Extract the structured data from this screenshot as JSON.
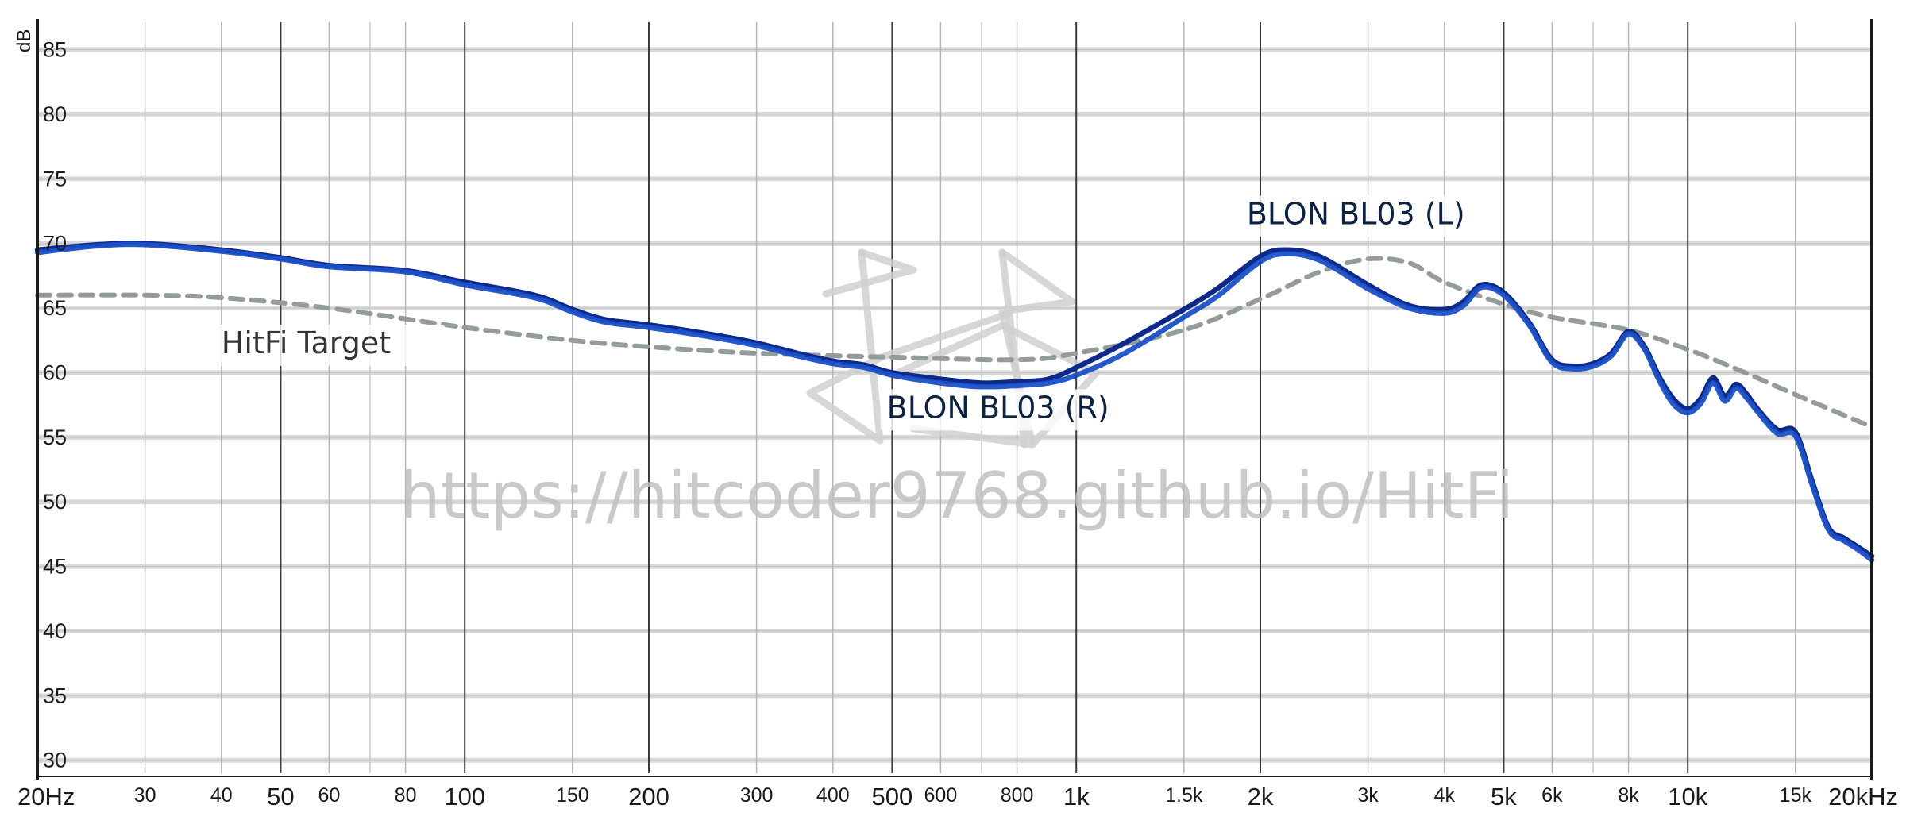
{
  "chart_data": {
    "type": "line",
    "title": "",
    "ylabel": "dB",
    "xlabel": "",
    "x_scale": "log",
    "xlim": [
      20,
      20000
    ],
    "ylim": [
      29,
      87
    ],
    "x_ticks": [
      {
        "value": 20,
        "label": "20Hz",
        "major": true
      },
      {
        "value": 30,
        "label": "30",
        "major": false
      },
      {
        "value": 40,
        "label": "40",
        "major": false
      },
      {
        "value": 50,
        "label": "50",
        "major": true
      },
      {
        "value": 60,
        "label": "60",
        "major": false
      },
      {
        "value": 80,
        "label": "80",
        "major": false
      },
      {
        "value": 100,
        "label": "100",
        "major": true
      },
      {
        "value": 150,
        "label": "150",
        "major": false
      },
      {
        "value": 200,
        "label": "200",
        "major": true
      },
      {
        "value": 300,
        "label": "300",
        "major": false
      },
      {
        "value": 400,
        "label": "400",
        "major": false
      },
      {
        "value": 500,
        "label": "500",
        "major": true
      },
      {
        "value": 600,
        "label": "600",
        "major": false
      },
      {
        "value": 800,
        "label": "800",
        "major": false
      },
      {
        "value": 1000,
        "label": "1k",
        "major": true
      },
      {
        "value": 1500,
        "label": "1.5k",
        "major": false
      },
      {
        "value": 2000,
        "label": "2k",
        "major": true
      },
      {
        "value": 3000,
        "label": "3k",
        "major": false
      },
      {
        "value": 4000,
        "label": "4k",
        "major": false
      },
      {
        "value": 5000,
        "label": "5k",
        "major": true
      },
      {
        "value": 6000,
        "label": "6k",
        "major": false
      },
      {
        "value": 8000,
        "label": "8k",
        "major": false
      },
      {
        "value": 10000,
        "label": "10k",
        "major": true
      },
      {
        "value": 15000,
        "label": "15k",
        "major": false
      },
      {
        "value": 20000,
        "label": "20kHz",
        "major": true
      }
    ],
    "x_gridlines_extra": [
      70,
      700,
      7000
    ],
    "y_ticks": [
      30,
      35,
      40,
      45,
      50,
      55,
      60,
      65,
      70,
      75,
      80,
      85
    ],
    "grid": true,
    "series": [
      {
        "name": "HitFi Target",
        "style": "dashed",
        "color": "#939c9a",
        "x": [
          20,
          30,
          40,
          60,
          100,
          150,
          200,
          300,
          500,
          800,
          1000,
          1500,
          2000,
          2500,
          3000,
          3500,
          4000,
          5000,
          6000,
          8000,
          10000,
          12000,
          15000,
          20000
        ],
        "y": [
          66.0,
          66.0,
          65.8,
          65.0,
          63.5,
          62.5,
          62.0,
          61.5,
          61.2,
          61.0,
          61.5,
          63.3,
          65.7,
          67.8,
          68.8,
          68.5,
          67.0,
          65.3,
          64.3,
          63.3,
          61.8,
          60.3,
          58.3,
          55.8
        ]
      },
      {
        "name": "BLON BL03 (L)",
        "style": "solid",
        "color": "#0d2a8a",
        "x": [
          20,
          25,
          30,
          40,
          50,
          60,
          80,
          100,
          130,
          150,
          170,
          200,
          250,
          300,
          350,
          400,
          450,
          500,
          600,
          700,
          800,
          900,
          1000,
          1200,
          1500,
          1700,
          2000,
          2200,
          2500,
          3000,
          3500,
          4000,
          4300,
          4600,
          5000,
          5500,
          6000,
          6500,
          7000,
          7500,
          8000,
          8500,
          9000,
          9500,
          10000,
          10500,
          11000,
          11500,
          12000,
          12500,
          13000,
          14000,
          15000,
          16000,
          17000,
          18000,
          19000,
          20000
        ],
        "y": [
          69.5,
          69.9,
          70.0,
          69.5,
          68.9,
          68.3,
          67.9,
          67.0,
          66.0,
          64.9,
          64.1,
          63.7,
          63.0,
          62.3,
          61.5,
          60.9,
          60.6,
          60.0,
          59.5,
          59.2,
          59.3,
          59.5,
          60.4,
          62.3,
          64.9,
          66.5,
          69.0,
          69.5,
          69.0,
          66.8,
          65.2,
          64.9,
          65.5,
          66.8,
          66.2,
          63.9,
          61.0,
          60.5,
          60.7,
          61.5,
          63.2,
          62.0,
          59.6,
          57.9,
          57.2,
          58.0,
          59.6,
          58.2,
          59.1,
          58.3,
          57.2,
          55.6,
          55.4,
          51.5,
          48.0,
          47.2,
          46.5,
          45.8
        ]
      },
      {
        "name": "BLON BL03 (R)",
        "style": "solid",
        "color": "#1a50c8",
        "x": [
          20,
          25,
          30,
          40,
          50,
          60,
          80,
          100,
          130,
          150,
          170,
          200,
          250,
          300,
          350,
          400,
          450,
          500,
          600,
          700,
          800,
          900,
          1000,
          1200,
          1500,
          1700,
          2000,
          2200,
          2500,
          3000,
          3500,
          4000,
          4300,
          4600,
          5000,
          5500,
          6000,
          6500,
          7000,
          7500,
          8000,
          8500,
          9000,
          9500,
          10000,
          10500,
          11000,
          11500,
          12000,
          12500,
          13000,
          14000,
          15000,
          16000,
          17000,
          18000,
          19000,
          20000
        ],
        "y": [
          69.3,
          69.8,
          69.9,
          69.4,
          68.8,
          68.2,
          67.8,
          66.8,
          65.8,
          64.7,
          63.9,
          63.5,
          62.8,
          62.1,
          61.3,
          60.7,
          60.4,
          59.8,
          59.2,
          58.9,
          59.0,
          59.2,
          59.8,
          61.5,
          64.3,
          65.9,
          68.6,
          69.2,
          68.7,
          66.5,
          65.0,
          64.6,
          65.2,
          66.6,
          66.0,
          63.7,
          60.8,
          60.3,
          60.5,
          61.3,
          63.0,
          61.8,
          59.3,
          57.5,
          56.9,
          57.6,
          59.2,
          57.8,
          58.8,
          58.0,
          57.0,
          55.3,
          55.1,
          51.2,
          47.8,
          47.0,
          46.3,
          45.5
        ]
      }
    ],
    "annotations": [
      {
        "text": "HitFi Target",
        "x": 40,
        "y": 61.5,
        "series": "HitFi Target"
      },
      {
        "text": "BLON BL03 (L)",
        "x": 1900,
        "y": 71.5,
        "series": "BLON BL03 (L)"
      },
      {
        "text": "BLON BL03 (R)",
        "x": 490,
        "y": 56.5,
        "series": "BLON BL03 (R)"
      }
    ],
    "watermark_text": "https://hitcoder9768.github.io/HitFi",
    "colors": {
      "target": "#939c9a",
      "left": "#0d2a8a",
      "right": "#1a50c8",
      "label_text": "#0a2244",
      "target_label_text": "#333333",
      "watermark": "#c0c0c0"
    }
  }
}
